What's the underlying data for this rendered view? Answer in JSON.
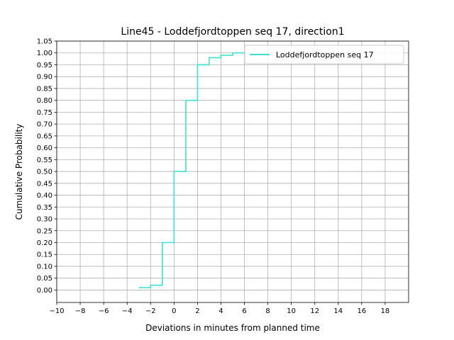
{
  "chart_data": {
    "type": "line",
    "title": "Line45 - Loddefjordtoppen seq 17, direction1",
    "xlabel": "Deviations in minutes from planned time",
    "ylabel": "Cumulative Probability",
    "xlim": [
      -10,
      20
    ],
    "ylim": [
      -0.0525,
      1.05
    ],
    "x_ticks": [
      -10,
      -8,
      -6,
      -4,
      -2,
      0,
      2,
      4,
      6,
      8,
      10,
      12,
      14,
      16,
      18
    ],
    "x_tick_labels": [
      "−10",
      "−8",
      "−6",
      "−4",
      "−2",
      "0",
      "2",
      "4",
      "6",
      "8",
      "10",
      "12",
      "14",
      "16",
      "18"
    ],
    "y_ticks": [
      0,
      0.05,
      0.1,
      0.15,
      0.2,
      0.25,
      0.3,
      0.35,
      0.4,
      0.45,
      0.5,
      0.55,
      0.6,
      0.65,
      0.7,
      0.75,
      0.8,
      0.85,
      0.9,
      0.95,
      1.0,
      1.05
    ],
    "y_tick_labels": [
      "0.00",
      "0.05",
      "0.10",
      "0.15",
      "0.20",
      "0.25",
      "0.30",
      "0.35",
      "0.40",
      "0.45",
      "0.50",
      "0.55",
      "0.60",
      "0.65",
      "0.70",
      "0.75",
      "0.80",
      "0.85",
      "0.90",
      "0.95",
      "1.00",
      "1.05"
    ],
    "grid": true,
    "legend_placement": "top-right",
    "series": [
      {
        "name": "Loddefjordtoppen seq 17",
        "color": "#40e0d0",
        "step": "post",
        "x": [
          -3,
          -2,
          -1,
          0,
          1,
          2,
          3,
          4,
          5,
          6
        ],
        "y": [
          0.01,
          0.02,
          0.2,
          0.5,
          0.8,
          0.95,
          0.98,
          0.99,
          1.0,
          1.0
        ]
      }
    ]
  }
}
